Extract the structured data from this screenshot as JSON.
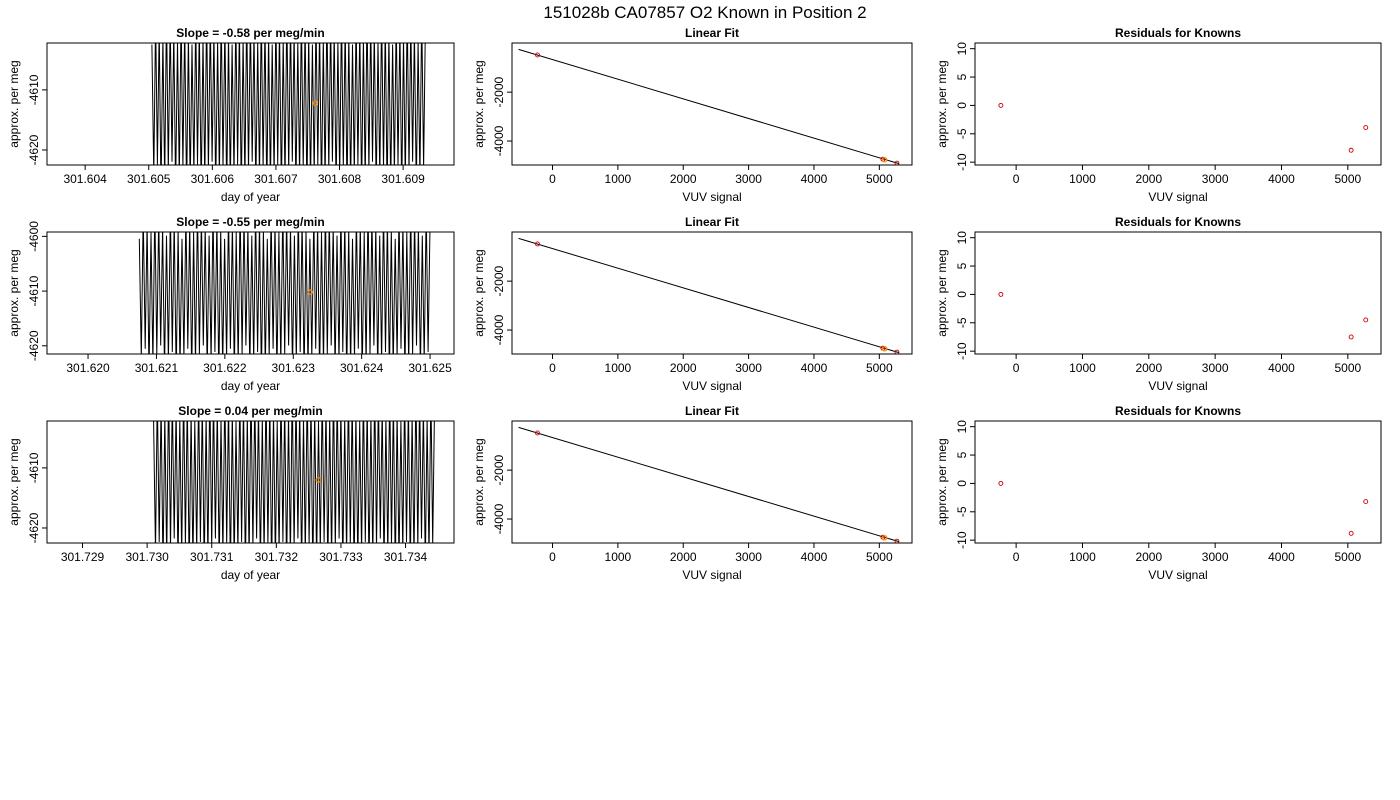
{
  "page": {
    "title": "151028b     CA07857   O2 Known in Position  2"
  },
  "colors": {
    "axis": "#000000",
    "trace": "#000000",
    "point_known": "#cc0000",
    "point_mean": "#ff8c00"
  },
  "chart_data": [
    {
      "id": "row1-trace",
      "type": "line",
      "title": "Slope =  -0.58  per meg/min",
      "xlabel": "day of year",
      "ylabel": "approx. per meg",
      "xlim": [
        301.6034,
        301.6098
      ],
      "ylim": [
        -4622.5,
        -4602.2
      ],
      "xticks": [
        {
          "v": 301.604,
          "label": "301.604"
        },
        {
          "v": 301.605,
          "label": "301.605"
        },
        {
          "v": 301.606,
          "label": "301.606"
        },
        {
          "v": 301.607,
          "label": "301.607"
        },
        {
          "v": 301.608,
          "label": "301.608"
        },
        {
          "v": 301.609,
          "label": "301.609"
        }
      ],
      "yticks": [
        {
          "v": -4610,
          "label": "-4610"
        },
        {
          "v": -4620,
          "label": "-4620"
        }
      ],
      "trace": {
        "x_start": 301.60505,
        "x_end": 301.60935,
        "center": -4612.2,
        "amplitude": 13,
        "cycles": 75
      },
      "mean_point": {
        "x": 301.60762,
        "y": -4612.2
      }
    },
    {
      "id": "row1-fit",
      "type": "scatter",
      "title": "Linear Fit",
      "xlabel": "VUV signal",
      "ylabel": "approx. per meg",
      "xlim": [
        -620,
        5500
      ],
      "ylim": [
        -4980,
        10
      ],
      "xticks": [
        {
          "v": 0,
          "label": "0"
        },
        {
          "v": 1000,
          "label": "1000"
        },
        {
          "v": 2000,
          "label": "2000"
        },
        {
          "v": 3000,
          "label": "3000"
        },
        {
          "v": 4000,
          "label": "4000"
        },
        {
          "v": 5000,
          "label": "5000"
        }
      ],
      "yticks": [
        {
          "v": -2000,
          "label": "-2000"
        },
        {
          "v": -4000,
          "label": "-4000"
        }
      ],
      "fit_line": {
        "x": [
          -520,
          5300
        ],
        "y": [
          -250,
          -4925
        ]
      },
      "known_points": [
        {
          "x": -230,
          "y": -480
        },
        {
          "x": 5055,
          "y": -4745
        },
        {
          "x": 5270,
          "y": -4905
        }
      ],
      "mean_point": {
        "x": 5080,
        "y": -4765
      }
    },
    {
      "id": "row1-resid",
      "type": "scatter",
      "title": "Residuals for Knowns",
      "xlabel": "VUV signal",
      "ylabel": "approx. per meg",
      "xlim": [
        -620,
        5500
      ],
      "ylim": [
        -10.5,
        11
      ],
      "xticks": [
        {
          "v": 0,
          "label": "0"
        },
        {
          "v": 1000,
          "label": "1000"
        },
        {
          "v": 2000,
          "label": "2000"
        },
        {
          "v": 3000,
          "label": "3000"
        },
        {
          "v": 4000,
          "label": "4000"
        },
        {
          "v": 5000,
          "label": "5000"
        }
      ],
      "yticks": [
        {
          "v": 10,
          "label": "10"
        },
        {
          "v": 5,
          "label": "5"
        },
        {
          "v": 0,
          "label": "0"
        },
        {
          "v": -5,
          "label": "-5"
        },
        {
          "v": -10,
          "label": "-10"
        }
      ],
      "points": [
        {
          "x": -230,
          "y": 0.0
        },
        {
          "x": 5050,
          "y": -7.9
        },
        {
          "x": 5270,
          "y": -3.9
        }
      ]
    },
    {
      "id": "row2-trace",
      "type": "line",
      "title": "Slope =  -0.55  per meg/min",
      "xlabel": "day of year",
      "ylabel": "approx. per meg",
      "xlim": [
        301.6194,
        301.62535
      ],
      "ylim": [
        -4621.5,
        -4599.2
      ],
      "xticks": [
        {
          "v": 301.62,
          "label": "301.620"
        },
        {
          "v": 301.621,
          "label": "301.621"
        },
        {
          "v": 301.622,
          "label": "301.622"
        },
        {
          "v": 301.623,
          "label": "301.623"
        },
        {
          "v": 301.624,
          "label": "301.624"
        },
        {
          "v": 301.625,
          "label": "301.625"
        }
      ],
      "yticks": [
        {
          "v": -4600,
          "label": "-4600"
        },
        {
          "v": -4610,
          "label": "-4610"
        },
        {
          "v": -4620,
          "label": "-4620"
        }
      ],
      "trace": {
        "x_start": 301.62075,
        "x_end": 301.625,
        "center": -4610.2,
        "amplitude": 13,
        "cycles": 75
      },
      "mean_point": {
        "x": 301.62325,
        "y": -4610.2
      }
    },
    {
      "id": "row2-fit",
      "type": "scatter",
      "title": "Linear Fit",
      "xlabel": "VUV signal",
      "ylabel": "approx. per meg",
      "xlim": [
        -620,
        5500
      ],
      "ylim": [
        -4980,
        10
      ],
      "xticks": [
        {
          "v": 0,
          "label": "0"
        },
        {
          "v": 1000,
          "label": "1000"
        },
        {
          "v": 2000,
          "label": "2000"
        },
        {
          "v": 3000,
          "label": "3000"
        },
        {
          "v": 4000,
          "label": "4000"
        },
        {
          "v": 5000,
          "label": "5000"
        }
      ],
      "yticks": [
        {
          "v": -2000,
          "label": "-2000"
        },
        {
          "v": -4000,
          "label": "-4000"
        }
      ],
      "fit_line": {
        "x": [
          -520,
          5300
        ],
        "y": [
          -250,
          -4925
        ]
      },
      "known_points": [
        {
          "x": -230,
          "y": -480
        },
        {
          "x": 5055,
          "y": -4745
        },
        {
          "x": 5270,
          "y": -4905
        }
      ],
      "mean_point": {
        "x": 5080,
        "y": -4765
      }
    },
    {
      "id": "row2-resid",
      "type": "scatter",
      "title": "Residuals for Knowns",
      "xlabel": "VUV signal",
      "ylabel": "approx. per meg",
      "xlim": [
        -620,
        5500
      ],
      "ylim": [
        -10.5,
        11
      ],
      "xticks": [
        {
          "v": 0,
          "label": "0"
        },
        {
          "v": 1000,
          "label": "1000"
        },
        {
          "v": 2000,
          "label": "2000"
        },
        {
          "v": 3000,
          "label": "3000"
        },
        {
          "v": 4000,
          "label": "4000"
        },
        {
          "v": 5000,
          "label": "5000"
        }
      ],
      "yticks": [
        {
          "v": 10,
          "label": "10"
        },
        {
          "v": 5,
          "label": "5"
        },
        {
          "v": 0,
          "label": "0"
        },
        {
          "v": -5,
          "label": "-5"
        },
        {
          "v": -10,
          "label": "-10"
        }
      ],
      "points": [
        {
          "x": -230,
          "y": 0.0
        },
        {
          "x": 5050,
          "y": -7.5
        },
        {
          "x": 5270,
          "y": -4.5
        }
      ]
    },
    {
      "id": "row3-trace",
      "type": "line",
      "title": "Slope =  0.04  per meg/min",
      "xlabel": "day of year",
      "ylabel": "approx. per meg",
      "xlim": [
        301.72845,
        301.73475
      ],
      "ylim": [
        -4622.5,
        -4602.2
      ],
      "xticks": [
        {
          "v": 301.729,
          "label": "301.729"
        },
        {
          "v": 301.73,
          "label": "301.730"
        },
        {
          "v": 301.731,
          "label": "301.731"
        },
        {
          "v": 301.732,
          "label": "301.732"
        },
        {
          "v": 301.733,
          "label": "301.733"
        },
        {
          "v": 301.734,
          "label": "301.734"
        }
      ],
      "yticks": [
        {
          "v": -4610,
          "label": "-4610"
        },
        {
          "v": -4620,
          "label": "-4620"
        }
      ],
      "trace": {
        "x_start": 301.7301,
        "x_end": 301.73445,
        "center": -4612.0,
        "amplitude": 13,
        "cycles": 75
      },
      "mean_point": {
        "x": 301.73265,
        "y": -4612.0
      }
    },
    {
      "id": "row3-fit",
      "type": "scatter",
      "title": "Linear Fit",
      "xlabel": "VUV signal",
      "ylabel": "approx. per meg",
      "xlim": [
        -620,
        5500
      ],
      "ylim": [
        -4980,
        10
      ],
      "xticks": [
        {
          "v": 0,
          "label": "0"
        },
        {
          "v": 1000,
          "label": "1000"
        },
        {
          "v": 2000,
          "label": "2000"
        },
        {
          "v": 3000,
          "label": "3000"
        },
        {
          "v": 4000,
          "label": "4000"
        },
        {
          "v": 5000,
          "label": "5000"
        }
      ],
      "yticks": [
        {
          "v": -2000,
          "label": "-2000"
        },
        {
          "v": -4000,
          "label": "-4000"
        }
      ],
      "fit_line": {
        "x": [
          -520,
          5300
        ],
        "y": [
          -250,
          -4925
        ]
      },
      "known_points": [
        {
          "x": -230,
          "y": -480
        },
        {
          "x": 5055,
          "y": -4745
        },
        {
          "x": 5270,
          "y": -4905
        }
      ],
      "mean_point": {
        "x": 5080,
        "y": -4765
      }
    },
    {
      "id": "row3-resid",
      "type": "scatter",
      "title": "Residuals for Knowns",
      "xlabel": "VUV signal",
      "ylabel": "approx. per meg",
      "xlim": [
        -620,
        5500
      ],
      "ylim": [
        -10.5,
        11
      ],
      "xticks": [
        {
          "v": 0,
          "label": "0"
        },
        {
          "v": 1000,
          "label": "1000"
        },
        {
          "v": 2000,
          "label": "2000"
        },
        {
          "v": 3000,
          "label": "3000"
        },
        {
          "v": 4000,
          "label": "4000"
        },
        {
          "v": 5000,
          "label": "5000"
        }
      ],
      "yticks": [
        {
          "v": 10,
          "label": "10"
        },
        {
          "v": 5,
          "label": "5"
        },
        {
          "v": 0,
          "label": "0"
        },
        {
          "v": -5,
          "label": "-5"
        },
        {
          "v": -10,
          "label": "-10"
        }
      ],
      "points": [
        {
          "x": -230,
          "y": 0.0
        },
        {
          "x": 5050,
          "y": -8.8
        },
        {
          "x": 5270,
          "y": -3.2
        }
      ]
    }
  ]
}
